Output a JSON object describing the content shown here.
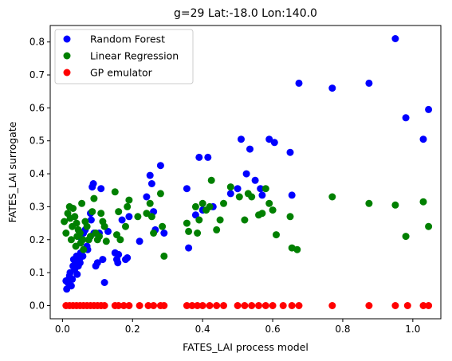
{
  "chart_data": {
    "type": "scatter",
    "title": "g=29 Lat:-18.0 Lon:140.0",
    "xlabel": "FATES_LAI process model",
    "ylabel": "FATES_LAI surrogate",
    "xlim": [
      -0.035,
      1.08
    ],
    "ylim": [
      -0.04,
      0.85
    ],
    "xticks": [
      0.0,
      0.2,
      0.4,
      0.6,
      0.8,
      1.0
    ],
    "xtick_labels": [
      "0.0",
      "0.2",
      "0.4",
      "0.6",
      "0.8",
      "1.0"
    ],
    "yticks": [
      0.0,
      0.1,
      0.2,
      0.3,
      0.4,
      0.5,
      0.6,
      0.7,
      0.8
    ],
    "ytick_labels": [
      "0.0",
      "0.1",
      "0.2",
      "0.3",
      "0.4",
      "0.5",
      "0.6",
      "0.7",
      "0.8"
    ],
    "grid": false,
    "legend_position": "top-left",
    "series": [
      {
        "name": "Random Forest",
        "color": "#0000ff",
        "points": [
          [
            0.01,
            0.075
          ],
          [
            0.012,
            0.05
          ],
          [
            0.015,
            0.07
          ],
          [
            0.02,
            0.09
          ],
          [
            0.022,
            0.1
          ],
          [
            0.025,
            0.06
          ],
          [
            0.028,
            0.08
          ],
          [
            0.03,
            0.12
          ],
          [
            0.032,
            0.14
          ],
          [
            0.035,
            0.11
          ],
          [
            0.038,
            0.13
          ],
          [
            0.04,
            0.15
          ],
          [
            0.042,
            0.095
          ],
          [
            0.045,
            0.12
          ],
          [
            0.048,
            0.14
          ],
          [
            0.05,
            0.13
          ],
          [
            0.052,
            0.16
          ],
          [
            0.055,
            0.2
          ],
          [
            0.058,
            0.15
          ],
          [
            0.06,
            0.22
          ],
          [
            0.065,
            0.23
          ],
          [
            0.07,
            0.18
          ],
          [
            0.072,
            0.17
          ],
          [
            0.075,
            0.2
          ],
          [
            0.08,
            0.28
          ],
          [
            0.082,
            0.26
          ],
          [
            0.085,
            0.36
          ],
          [
            0.088,
            0.37
          ],
          [
            0.09,
            0.22
          ],
          [
            0.095,
            0.12
          ],
          [
            0.1,
            0.13
          ],
          [
            0.105,
            0.22
          ],
          [
            0.11,
            0.355
          ],
          [
            0.115,
            0.14
          ],
          [
            0.12,
            0.07
          ],
          [
            0.13,
            0.225
          ],
          [
            0.15,
            0.16
          ],
          [
            0.155,
            0.14
          ],
          [
            0.158,
            0.13
          ],
          [
            0.16,
            0.155
          ],
          [
            0.17,
            0.26
          ],
          [
            0.18,
            0.14
          ],
          [
            0.185,
            0.145
          ],
          [
            0.19,
            0.27
          ],
          [
            0.22,
            0.195
          ],
          [
            0.24,
            0.33
          ],
          [
            0.25,
            0.395
          ],
          [
            0.255,
            0.37
          ],
          [
            0.26,
            0.285
          ],
          [
            0.265,
            0.23
          ],
          [
            0.28,
            0.425
          ],
          [
            0.29,
            0.22
          ],
          [
            0.355,
            0.355
          ],
          [
            0.36,
            0.175
          ],
          [
            0.38,
            0.275
          ],
          [
            0.39,
            0.45
          ],
          [
            0.4,
            0.29
          ],
          [
            0.415,
            0.45
          ],
          [
            0.43,
            0.3
          ],
          [
            0.48,
            0.34
          ],
          [
            0.5,
            0.355
          ],
          [
            0.51,
            0.505
          ],
          [
            0.525,
            0.4
          ],
          [
            0.535,
            0.475
          ],
          [
            0.55,
            0.38
          ],
          [
            0.565,
            0.355
          ],
          [
            0.57,
            0.335
          ],
          [
            0.59,
            0.505
          ],
          [
            0.605,
            0.495
          ],
          [
            0.65,
            0.465
          ],
          [
            0.655,
            0.335
          ],
          [
            0.675,
            0.675
          ],
          [
            0.77,
            0.66
          ],
          [
            0.875,
            0.675
          ],
          [
            0.95,
            0.81
          ],
          [
            0.98,
            0.57
          ],
          [
            1.03,
            0.505
          ],
          [
            1.045,
            0.595
          ]
        ]
      },
      {
        "name": "Linear Regression",
        "color": "#008000",
        "points": [
          [
            0.005,
            0.255
          ],
          [
            0.01,
            0.22
          ],
          [
            0.015,
            0.28
          ],
          [
            0.02,
            0.3
          ],
          [
            0.022,
            0.265
          ],
          [
            0.025,
            0.2
          ],
          [
            0.028,
            0.24
          ],
          [
            0.03,
            0.295
          ],
          [
            0.035,
            0.27
          ],
          [
            0.038,
            0.18
          ],
          [
            0.04,
            0.25
          ],
          [
            0.042,
            0.21
          ],
          [
            0.045,
            0.23
          ],
          [
            0.05,
            0.22
          ],
          [
            0.052,
            0.19
          ],
          [
            0.055,
            0.31
          ],
          [
            0.058,
            0.2
          ],
          [
            0.06,
            0.17
          ],
          [
            0.065,
            0.255
          ],
          [
            0.07,
            0.24
          ],
          [
            0.075,
            0.2
          ],
          [
            0.08,
            0.21
          ],
          [
            0.085,
            0.285
          ],
          [
            0.09,
            0.325
          ],
          [
            0.095,
            0.22
          ],
          [
            0.1,
            0.2
          ],
          [
            0.105,
            0.21
          ],
          [
            0.11,
            0.28
          ],
          [
            0.115,
            0.255
          ],
          [
            0.12,
            0.24
          ],
          [
            0.125,
            0.195
          ],
          [
            0.15,
            0.345
          ],
          [
            0.155,
            0.215
          ],
          [
            0.16,
            0.285
          ],
          [
            0.165,
            0.2
          ],
          [
            0.18,
            0.24
          ],
          [
            0.185,
            0.3
          ],
          [
            0.19,
            0.32
          ],
          [
            0.215,
            0.27
          ],
          [
            0.24,
            0.28
          ],
          [
            0.25,
            0.31
          ],
          [
            0.255,
            0.27
          ],
          [
            0.26,
            0.22
          ],
          [
            0.28,
            0.34
          ],
          [
            0.285,
            0.24
          ],
          [
            0.29,
            0.15
          ],
          [
            0.355,
            0.25
          ],
          [
            0.36,
            0.225
          ],
          [
            0.38,
            0.3
          ],
          [
            0.385,
            0.22
          ],
          [
            0.39,
            0.26
          ],
          [
            0.4,
            0.31
          ],
          [
            0.41,
            0.29
          ],
          [
            0.42,
            0.3
          ],
          [
            0.425,
            0.38
          ],
          [
            0.44,
            0.23
          ],
          [
            0.45,
            0.26
          ],
          [
            0.46,
            0.31
          ],
          [
            0.48,
            0.36
          ],
          [
            0.505,
            0.33
          ],
          [
            0.52,
            0.26
          ],
          [
            0.53,
            0.34
          ],
          [
            0.54,
            0.33
          ],
          [
            0.56,
            0.275
          ],
          [
            0.57,
            0.28
          ],
          [
            0.58,
            0.355
          ],
          [
            0.59,
            0.31
          ],
          [
            0.6,
            0.29
          ],
          [
            0.61,
            0.215
          ],
          [
            0.65,
            0.27
          ],
          [
            0.655,
            0.175
          ],
          [
            0.67,
            0.17
          ],
          [
            0.77,
            0.33
          ],
          [
            0.875,
            0.31
          ],
          [
            0.95,
            0.305
          ],
          [
            0.98,
            0.21
          ],
          [
            1.03,
            0.315
          ],
          [
            1.045,
            0.24
          ]
        ]
      },
      {
        "name": "GP emulator",
        "color": "#ff0000",
        "points": [
          [
            0.01,
            0.0
          ],
          [
            0.02,
            0.0
          ],
          [
            0.03,
            0.0
          ],
          [
            0.04,
            0.0
          ],
          [
            0.05,
            0.0
          ],
          [
            0.06,
            0.0
          ],
          [
            0.07,
            0.0
          ],
          [
            0.08,
            0.0
          ],
          [
            0.09,
            0.0
          ],
          [
            0.1,
            0.0
          ],
          [
            0.11,
            0.0
          ],
          [
            0.12,
            0.0
          ],
          [
            0.15,
            0.0
          ],
          [
            0.16,
            0.0
          ],
          [
            0.175,
            0.0
          ],
          [
            0.19,
            0.0
          ],
          [
            0.22,
            0.0
          ],
          [
            0.245,
            0.0
          ],
          [
            0.26,
            0.0
          ],
          [
            0.28,
            0.0
          ],
          [
            0.29,
            0.0
          ],
          [
            0.355,
            0.0
          ],
          [
            0.37,
            0.0
          ],
          [
            0.385,
            0.0
          ],
          [
            0.4,
            0.0
          ],
          [
            0.42,
            0.0
          ],
          [
            0.44,
            0.0
          ],
          [
            0.46,
            0.0
          ],
          [
            0.5,
            0.0
          ],
          [
            0.52,
            0.0
          ],
          [
            0.54,
            0.0
          ],
          [
            0.56,
            0.0
          ],
          [
            0.58,
            0.0
          ],
          [
            0.6,
            0.0
          ],
          [
            0.63,
            0.0
          ],
          [
            0.655,
            0.0
          ],
          [
            0.675,
            0.0
          ],
          [
            0.77,
            0.0
          ],
          [
            0.875,
            0.0
          ],
          [
            0.95,
            0.0
          ],
          [
            0.985,
            0.0
          ],
          [
            1.03,
            0.0
          ],
          [
            1.045,
            0.0
          ]
        ]
      }
    ]
  }
}
